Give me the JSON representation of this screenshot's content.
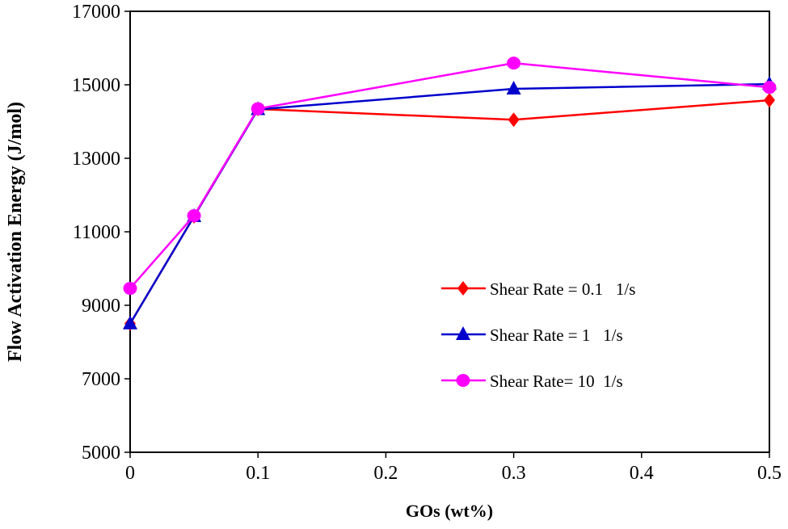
{
  "chart_data": {
    "type": "line",
    "title": "",
    "xlabel": "GOs (wt%)",
    "ylabel": "Flow Activation Energy (J/mol)",
    "xlim": [
      0,
      0.5
    ],
    "ylim": [
      5000,
      17000
    ],
    "xticks": [
      "0",
      "0.1",
      "0.2",
      "0.3",
      "0.4",
      "0.5"
    ],
    "yticks": [
      "5000",
      "7000",
      "9000",
      "11000",
      "13000",
      "15000",
      "17000"
    ],
    "grid": false,
    "legend_position": "center-right",
    "x": [
      0,
      0.05,
      0.1,
      0.3,
      0.5
    ],
    "series": [
      {
        "name": "Shear Rate = 0.1   1/s",
        "color": "#ff0000",
        "marker": "diamond",
        "values": [
          8500,
          11420,
          14340,
          14050,
          14580
        ]
      },
      {
        "name": "Shear Rate = 1   1/s",
        "color": "#0000cc",
        "marker": "triangle",
        "values": [
          8500,
          11420,
          14330,
          14890,
          15020
        ]
      },
      {
        "name": "Shear Rate= 10  1/s",
        "color": "#ff00ff",
        "marker": "circle",
        "values": [
          9460,
          11440,
          14350,
          15590,
          14930
        ]
      }
    ]
  }
}
